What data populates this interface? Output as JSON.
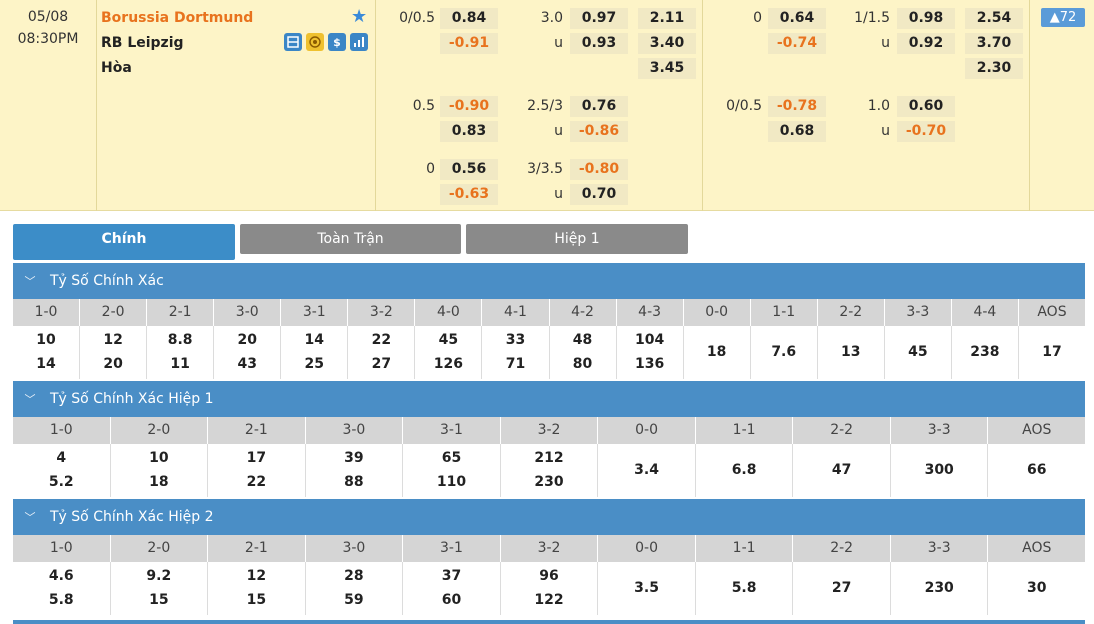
{
  "match": {
    "date": "05/08",
    "time": "08:30PM",
    "home": "Borussia Dortmund",
    "away": "RB Leipzig",
    "draw": "Hòa",
    "more_count": "72",
    "icons": [
      "scoreboard-icon",
      "coin-icon",
      "dollar-icon",
      "stats-icon"
    ],
    "ft_handicap": [
      {
        "line": "0/0.5",
        "home": "0.84",
        "away": "-0.91"
      },
      {
        "line": "0.5",
        "home": "-0.90",
        "away": "0.83"
      },
      {
        "line": "0",
        "home": "0.56",
        "away": "-0.63"
      }
    ],
    "ft_overunder": [
      {
        "line": "3.0",
        "over": "0.97",
        "u": "u",
        "under": "0.93"
      },
      {
        "line": "2.5/3",
        "over": "0.76",
        "u": "u",
        "under": "-0.86"
      },
      {
        "line": "3/3.5",
        "over": "-0.80",
        "u": "u",
        "under": "0.70"
      }
    ],
    "ft_1x2": [
      "2.11",
      "3.40",
      "3.45"
    ],
    "h1_handicap": [
      {
        "line": "0",
        "home": "0.64",
        "away": "-0.74"
      },
      {
        "line": "0/0.5",
        "home": "-0.78",
        "away": "0.68"
      }
    ],
    "h1_overunder": [
      {
        "line": "1/1.5",
        "over": "0.98",
        "u": "u",
        "under": "0.92"
      },
      {
        "line": "1.0",
        "over": "0.60",
        "u": "u",
        "under": "-0.70"
      }
    ],
    "h1_1x2": [
      "2.54",
      "3.70",
      "2.30"
    ]
  },
  "tabs": [
    "Chính",
    "Toàn Trận",
    "Hiệp 1"
  ],
  "sections": [
    {
      "title": "Tỷ Số Chính Xác",
      "headers": [
        "1-0",
        "2-0",
        "2-1",
        "3-0",
        "3-1",
        "3-2",
        "4-0",
        "4-1",
        "4-2",
        "4-3",
        "0-0",
        "1-1",
        "2-2",
        "3-3",
        "4-4",
        "AOS"
      ],
      "values": [
        [
          "10",
          "14"
        ],
        [
          "12",
          "20"
        ],
        [
          "8.8",
          "11"
        ],
        [
          "20",
          "43"
        ],
        [
          "14",
          "25"
        ],
        [
          "22",
          "27"
        ],
        [
          "45",
          "126"
        ],
        [
          "33",
          "71"
        ],
        [
          "48",
          "80"
        ],
        [
          "104",
          "136"
        ],
        [
          "18"
        ],
        [
          "7.6"
        ],
        [
          "13"
        ],
        [
          "45"
        ],
        [
          "238"
        ],
        [
          "17"
        ]
      ]
    },
    {
      "title": "Tỷ Số Chính Xác Hiệp 1",
      "headers": [
        "1-0",
        "2-0",
        "2-1",
        "3-0",
        "3-1",
        "3-2",
        "0-0",
        "1-1",
        "2-2",
        "3-3",
        "AOS"
      ],
      "values": [
        [
          "4",
          "5.2"
        ],
        [
          "10",
          "18"
        ],
        [
          "17",
          "22"
        ],
        [
          "39",
          "88"
        ],
        [
          "65",
          "110"
        ],
        [
          "212",
          "230"
        ],
        [
          "3.4"
        ],
        [
          "6.8"
        ],
        [
          "47"
        ],
        [
          "300"
        ],
        [
          "66"
        ]
      ]
    },
    {
      "title": "Tỷ Số Chính Xác Hiệp 2",
      "headers": [
        "1-0",
        "2-0",
        "2-1",
        "3-0",
        "3-1",
        "3-2",
        "0-0",
        "1-1",
        "2-2",
        "3-3",
        "AOS"
      ],
      "values": [
        [
          "4.6",
          "5.8"
        ],
        [
          "9.2",
          "15"
        ],
        [
          "12",
          "15"
        ],
        [
          "28",
          "59"
        ],
        [
          "37",
          "60"
        ],
        [
          "96",
          "122"
        ],
        [
          "3.5"
        ],
        [
          "5.8"
        ],
        [
          "27"
        ],
        [
          "230"
        ],
        [
          "30"
        ]
      ]
    }
  ],
  "colors": {
    "accent": "#3c8dc8",
    "negative": "#e8731e",
    "match_bg": "#fdf4c7"
  }
}
